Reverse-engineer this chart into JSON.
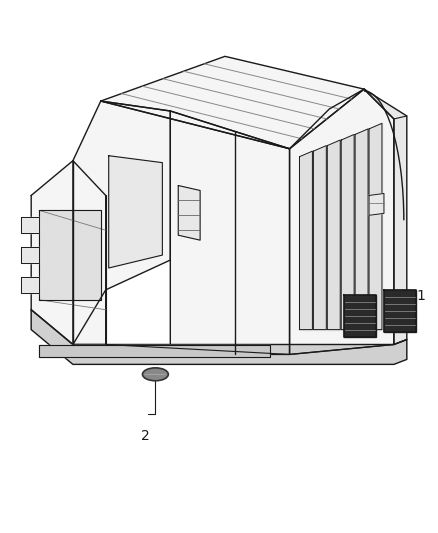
{
  "background_color": "#ffffff",
  "fig_width": 4.38,
  "fig_height": 5.33,
  "dpi": 100,
  "label1": "1",
  "label2": "2",
  "line_color": "#1a1a1a",
  "fill_light": "#f5f5f5",
  "fill_mid": "#e8e8e8",
  "fill_dark": "#d0d0d0",
  "part_fill": "#2a2a2a",
  "grommet_fill": "#888888"
}
